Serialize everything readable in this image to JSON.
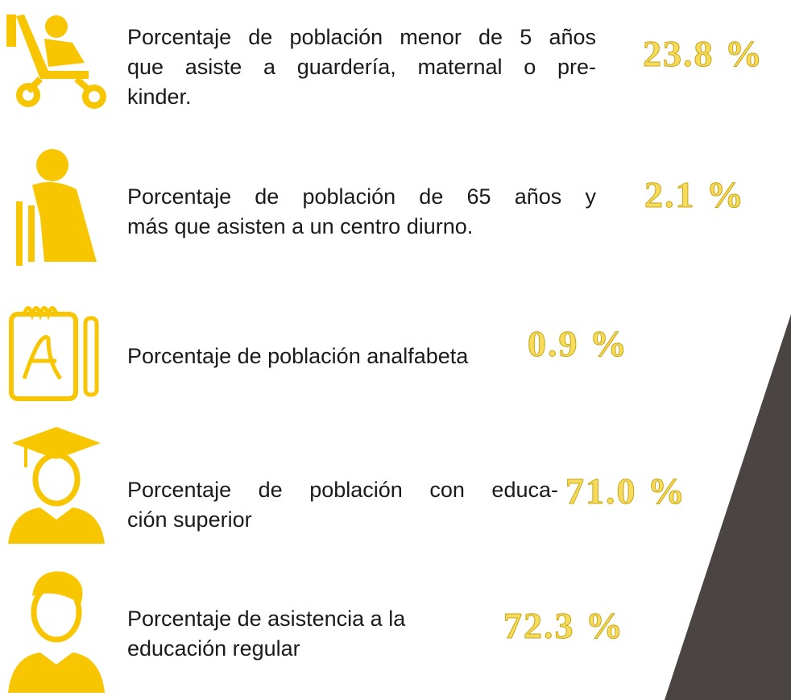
{
  "items": [
    {
      "lines": [
        "Porcentaje de población menor de 5 años",
        "que asiste a guardería, maternal o pre-",
        "kinder."
      ],
      "value": "23.8 %"
    },
    {
      "lines": [
        "Porcentaje de población de 65 años y",
        "más que asisten a un centro diurno."
      ],
      "value": "2.1 %"
    },
    {
      "lines": [
        "Porcentaje de población analfabeta"
      ],
      "value": "0.9 %"
    },
    {
      "lines": [
        "Porcentaje de población con educa-",
        "ción superior"
      ],
      "value": "71.0 %"
    },
    {
      "lines": [
        "Porcentaje de asistencia a la",
        "educación regular"
      ],
      "value": "72.3 %"
    }
  ]
}
